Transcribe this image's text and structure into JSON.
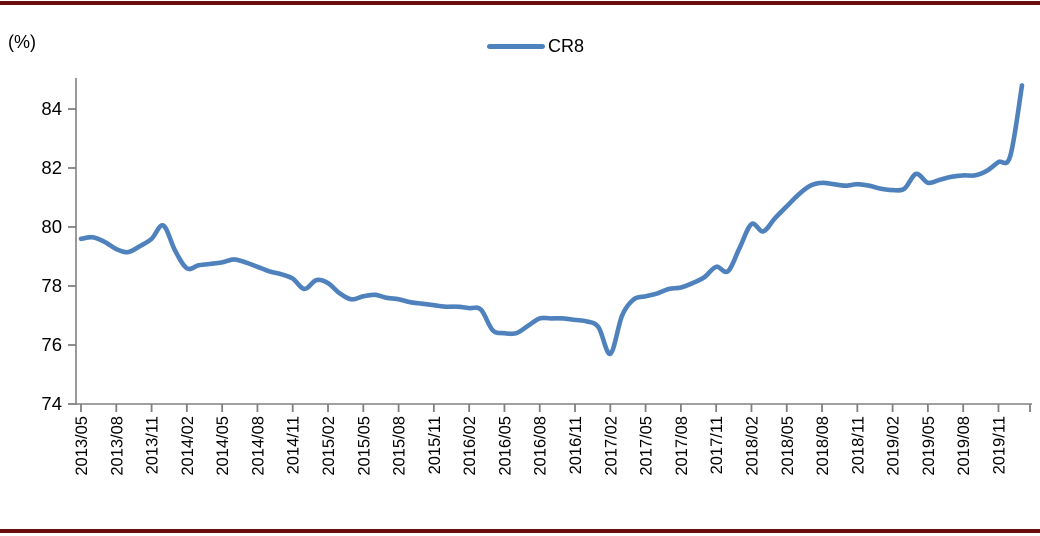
{
  "page": {
    "unit_label": "(%)"
  },
  "legend": {
    "label": "CR8"
  },
  "colors": {
    "line": "#4F81BD",
    "axis": "#808080",
    "text": "#000000",
    "border_rule": "#6D0C0C",
    "background": "#FFFFFF"
  },
  "chart_data": {
    "type": "line",
    "title": "",
    "ylabel": "(%)",
    "xlabel": "",
    "grid": false,
    "legend_position": "top-center",
    "legend_entries": [
      "CR8"
    ],
    "ylim": [
      74,
      85
    ],
    "y_ticks": [
      74,
      76,
      78,
      80,
      82,
      84
    ],
    "x_tick_labels": [
      "2013/05",
      "2013/08",
      "2013/11",
      "2014/02",
      "2014/05",
      "2014/08",
      "2014/11",
      "2015/02",
      "2015/05",
      "2015/08",
      "2015/11",
      "2016/02",
      "2016/05",
      "2016/08",
      "2016/11",
      "2017/02",
      "2017/05",
      "2017/08",
      "2017/11",
      "2018/02",
      "2018/05",
      "2018/08",
      "2018/11",
      "2019/02",
      "2019/05",
      "2019/08",
      "2019/11"
    ],
    "x_tick_every_n_months": 3,
    "x_label_rotation_deg": -90,
    "x": [
      "2013/05",
      "2013/06",
      "2013/07",
      "2013/08",
      "2013/09",
      "2013/10",
      "2013/11",
      "2013/12",
      "2014/01",
      "2014/02",
      "2014/03",
      "2014/04",
      "2014/05",
      "2014/06",
      "2014/07",
      "2014/08",
      "2014/09",
      "2014/10",
      "2014/11",
      "2014/12",
      "2015/01",
      "2015/02",
      "2015/03",
      "2015/04",
      "2015/05",
      "2015/06",
      "2015/07",
      "2015/08",
      "2015/09",
      "2015/10",
      "2015/11",
      "2015/12",
      "2016/01",
      "2016/02",
      "2016/03",
      "2016/04",
      "2016/05",
      "2016/06",
      "2016/07",
      "2016/08",
      "2016/09",
      "2016/10",
      "2016/11",
      "2016/12",
      "2017/01",
      "2017/02",
      "2017/03",
      "2017/04",
      "2017/05",
      "2017/06",
      "2017/07",
      "2017/08",
      "2017/09",
      "2017/10",
      "2017/11",
      "2017/12",
      "2018/01",
      "2018/02",
      "2018/03",
      "2018/04",
      "2018/05",
      "2018/06",
      "2018/07",
      "2018/08",
      "2018/09",
      "2018/10",
      "2018/11",
      "2018/12",
      "2019/01",
      "2019/02",
      "2019/03",
      "2019/04",
      "2019/05",
      "2019/06",
      "2019/07",
      "2019/08",
      "2019/09",
      "2019/10",
      "2019/11",
      "2019/12",
      "2020/01"
    ],
    "series": [
      {
        "name": "CR8",
        "color": "#4F81BD",
        "values": [
          79.6,
          79.65,
          79.5,
          79.25,
          79.15,
          79.35,
          79.6,
          80.05,
          79.2,
          78.6,
          78.7,
          78.75,
          78.8,
          78.9,
          78.8,
          78.65,
          78.5,
          78.4,
          78.25,
          77.9,
          78.2,
          78.1,
          77.75,
          77.55,
          77.65,
          77.7,
          77.6,
          77.55,
          77.45,
          77.4,
          77.35,
          77.3,
          77.3,
          77.25,
          77.2,
          76.5,
          76.4,
          76.4,
          76.65,
          76.9,
          76.9,
          76.9,
          76.85,
          76.8,
          76.6,
          75.7,
          77.0,
          77.55,
          77.65,
          77.75,
          77.9,
          77.95,
          78.1,
          78.3,
          78.65,
          78.5,
          79.3,
          80.1,
          79.85,
          80.3,
          80.7,
          81.1,
          81.4,
          81.5,
          81.45,
          81.4,
          81.45,
          81.4,
          81.3,
          81.25,
          81.3,
          81.8,
          81.5,
          81.6,
          81.7,
          81.75,
          81.75,
          81.9,
          82.2,
          82.4,
          84.8
        ]
      }
    ]
  }
}
